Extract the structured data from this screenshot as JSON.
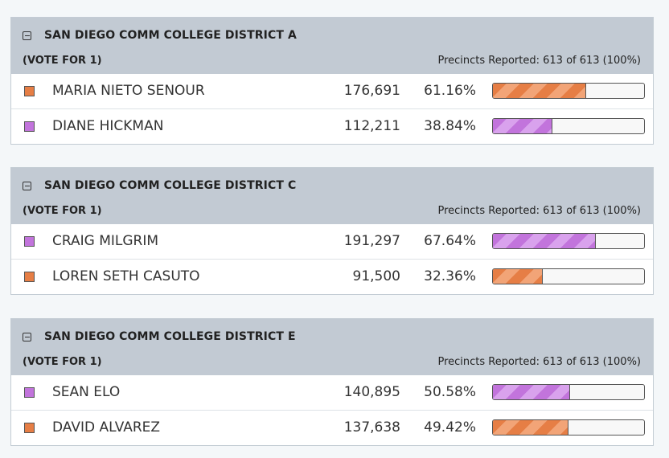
{
  "colors": {
    "orange": "#e67e45",
    "orange_stripe": "#f2a477",
    "purple": "#c274dc",
    "purple_stripe": "#d9a2ed"
  },
  "races": [
    {
      "title": "SAN DIEGO COMM COLLEGE DISTRICT A",
      "vote_for": "(VOTE FOR 1)",
      "precincts": "Precincts Reported: 613 of 613 (100%)",
      "candidates": [
        {
          "name": "MARIA NIETO SENOUR",
          "votes": "176,691",
          "percent": "61.16%",
          "share": 61.16,
          "color": "orange"
        },
        {
          "name": "DIANE HICKMAN",
          "votes": "112,211",
          "percent": "38.84%",
          "share": 38.84,
          "color": "purple"
        }
      ]
    },
    {
      "title": "SAN DIEGO COMM COLLEGE DISTRICT C",
      "vote_for": "(VOTE FOR 1)",
      "precincts": "Precincts Reported: 613 of 613 (100%)",
      "candidates": [
        {
          "name": "CRAIG MILGRIM",
          "votes": "191,297",
          "percent": "67.64%",
          "share": 67.64,
          "color": "purple"
        },
        {
          "name": "LOREN SETH CASUTO",
          "votes": "91,500",
          "percent": "32.36%",
          "share": 32.36,
          "color": "orange"
        }
      ]
    },
    {
      "title": "SAN DIEGO COMM COLLEGE DISTRICT E",
      "vote_for": "(VOTE FOR 1)",
      "precincts": "Precincts Reported: 613 of 613 (100%)",
      "candidates": [
        {
          "name": "SEAN ELO",
          "votes": "140,895",
          "percent": "50.58%",
          "share": 50.58,
          "color": "purple"
        },
        {
          "name": "DAVID ALVAREZ",
          "votes": "137,638",
          "percent": "49.42%",
          "share": 49.42,
          "color": "orange"
        }
      ]
    }
  ]
}
